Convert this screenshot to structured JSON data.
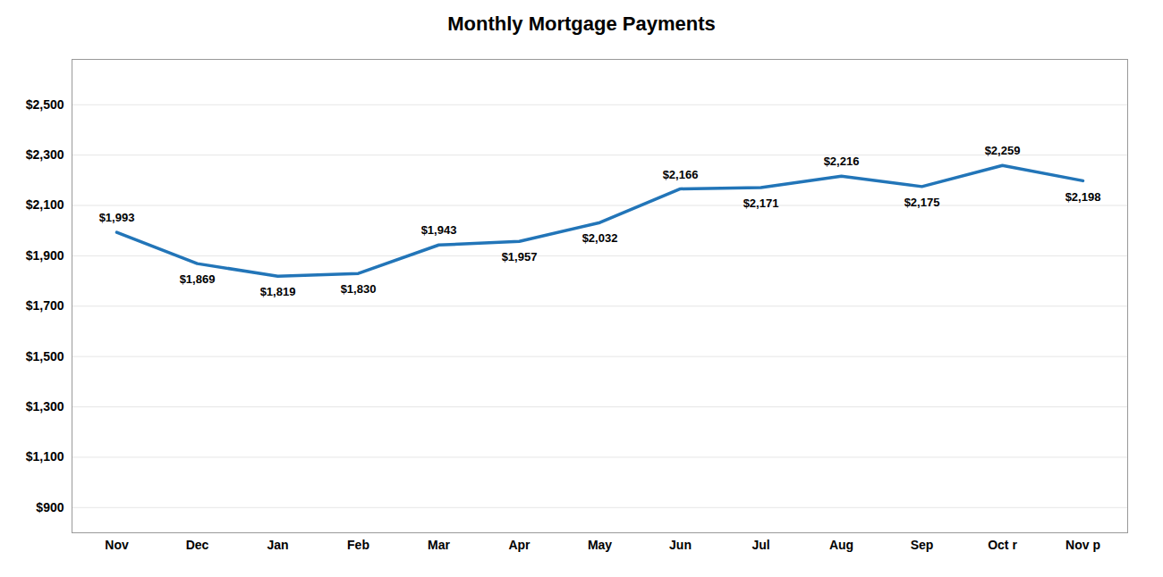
{
  "chart_data": {
    "type": "line",
    "title": "Monthly Mortgage Payments",
    "categories": [
      "Nov",
      "Dec",
      "Jan",
      "Feb",
      "Mar",
      "Apr",
      "May",
      "Jun",
      "Jul",
      "Aug",
      "Sep",
      "Oct r",
      "Nov p"
    ],
    "values": [
      1993,
      1869,
      1819,
      1830,
      1943,
      1957,
      2032,
      2166,
      2171,
      2216,
      2175,
      2259,
      2198
    ],
    "value_labels": [
      "$1,993",
      "$1,869",
      "$1,819",
      "$1,830",
      "$1,943",
      "$1,957",
      "$2,032",
      "$2,166",
      "$2,171",
      "$2,216",
      "$2,175",
      "$2,259",
      "$2,198"
    ],
    "data_labels": true,
    "color": "#2275B8",
    "ylim": [
      800,
      2680
    ],
    "yticks": [
      {
        "value": 900,
        "label": "$900"
      },
      {
        "value": 1100,
        "label": "$1,100"
      },
      {
        "value": 1300,
        "label": "$1,300"
      },
      {
        "value": 1500,
        "label": "$1,500"
      },
      {
        "value": 1700,
        "label": "$1,700"
      },
      {
        "value": 1900,
        "label": "$1,900"
      },
      {
        "value": 2100,
        "label": "$2,100"
      },
      {
        "value": 2300,
        "label": "$2,300"
      },
      {
        "value": 2500,
        "label": "$2,500"
      }
    ],
    "grid": true
  }
}
